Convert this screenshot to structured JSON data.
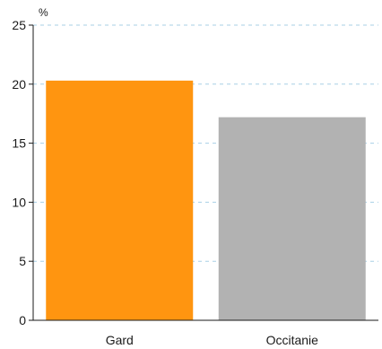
{
  "chart_data": {
    "type": "bar",
    "unit_label": "%",
    "categories": [
      "Gard",
      "Occitanie"
    ],
    "values": [
      20.3,
      17.2
    ],
    "colors": [
      "#ff9510",
      "#b2b2b2"
    ],
    "ylim": [
      0,
      25
    ],
    "yticks": [
      0,
      5,
      10,
      15,
      20,
      25
    ],
    "ytick_labels": [
      "0",
      "5",
      "10",
      "15",
      "20",
      "25"
    ],
    "grid": true,
    "grid_color": "#a8cfe6",
    "title": "",
    "xlabel": "",
    "ylabel": ""
  }
}
